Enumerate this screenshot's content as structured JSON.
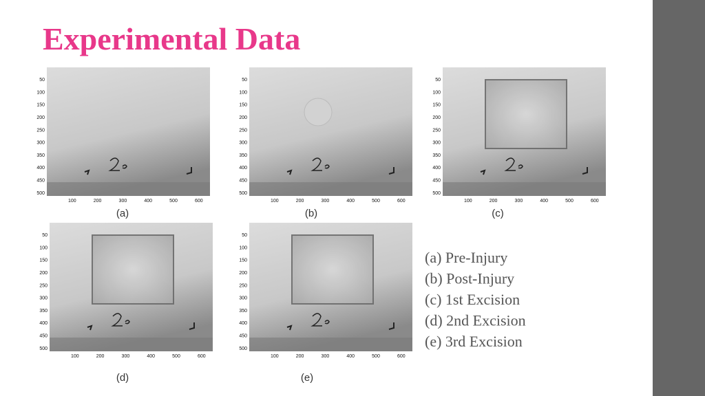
{
  "title": "Experimental Data",
  "axes": {
    "yticks": [
      50,
      100,
      150,
      200,
      250,
      300,
      350,
      400,
      450,
      500
    ],
    "xticks": [
      100,
      200,
      300,
      400,
      500,
      600
    ]
  },
  "panels": [
    {
      "caption": "(a)"
    },
    {
      "caption": "(b)"
    },
    {
      "caption": "(c)"
    },
    {
      "caption": "(d)"
    },
    {
      "caption": "(e)"
    }
  ],
  "legend": [
    "(a) Pre-Injury",
    "(b) Post-Injury",
    "(c) 1st Excision",
    "(d) 2nd Excision",
    "(e) 3rd Excision"
  ]
}
